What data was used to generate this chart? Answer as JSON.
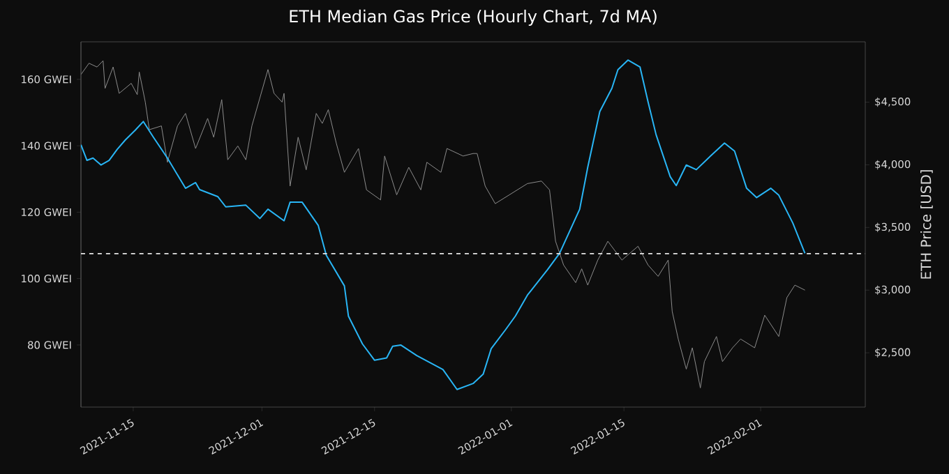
{
  "chart_data": {
    "type": "line",
    "title": "ETH Median Gas Price (Hourly Chart, 7d MA)",
    "y2label": "ETH Price [USD]",
    "xlim": [
      "2021-11-08T12:00",
      "2022-02-14T00:00"
    ],
    "xticks": [
      "2021-11-15",
      "2021-12-01",
      "2021-12-15",
      "2022-01-01",
      "2022-01-15",
      "2022-02-01"
    ],
    "ylim": [
      61.3,
      171.3
    ],
    "yticks": [
      {
        "value": 80,
        "label": "80 GWEI"
      },
      {
        "value": 100,
        "label": "100 GWEI"
      },
      {
        "value": 120,
        "label": "120 GWEI"
      },
      {
        "value": 140,
        "label": "140 GWEI"
      },
      {
        "value": 160,
        "label": "160 GWEI"
      }
    ],
    "y2lim": [
      2067,
      4981
    ],
    "y2ticks": [
      {
        "value": 2500,
        "label": "$2,500"
      },
      {
        "value": 3000,
        "label": "$3,000"
      },
      {
        "value": 3500,
        "label": "$3,500"
      },
      {
        "value": 4000,
        "label": "$4,000"
      },
      {
        "value": 4500,
        "label": "$4,500"
      }
    ],
    "series": [
      {
        "color": "#8c8c8c",
        "axis": "y2",
        "x": [
          "2021-11-08T12:00",
          "2021-11-09T12:00",
          "2021-11-10T12:00",
          "2021-11-11T06:00",
          "2021-11-11T12:00",
          "2021-11-12T12:00",
          "2021-11-13T06:00",
          "2021-11-14T18:00",
          "2021-11-15T12:00",
          "2021-11-15T18:00",
          "2021-11-16T12:00",
          "2021-11-17",
          "2021-11-18T12:00",
          "2021-11-19T06:00",
          "2021-11-20T12:00",
          "2021-11-21T12:00",
          "2021-11-22T18:00",
          "2021-11-24T06:00",
          "2021-11-25",
          "2021-11-26",
          "2021-11-26T18:00",
          "2021-11-28",
          "2021-11-29",
          "2021-11-29T18:00",
          "2021-12-01T18:00",
          "2021-12-02T12:00",
          "2021-12-03T12:00",
          "2021-12-03T18:00",
          "2021-12-04T12:00",
          "2021-12-05T12:00",
          "2021-12-06T12:00",
          "2021-12-07T18:00",
          "2021-12-08T12:00",
          "2021-12-09T06:00",
          "2021-12-10T06:00",
          "2021-12-11T06:00",
          "2021-12-13",
          "2021-12-14",
          "2021-12-15T18:00",
          "2021-12-16T06:00",
          "2021-12-17T18:00",
          "2021-12-19T06:00",
          "2021-12-20T18:00",
          "2021-12-21T12:00",
          "2021-12-23T06:00",
          "2021-12-24",
          "2021-12-26",
          "2021-12-27T06:00",
          "2021-12-27T18:00",
          "2021-12-28T18:00",
          "2021-12-30",
          "2021-12-31T18:00",
          "2022-01-03",
          "2022-01-04T18:00",
          "2022-01-05T18:00",
          "2022-01-06T12:00",
          "2022-01-07T12:00",
          "2022-01-09",
          "2022-01-09T18:00",
          "2022-01-10T12:00",
          "2022-01-11T18:00",
          "2022-01-13",
          "2022-01-14T18:00",
          "2022-01-16T18:00",
          "2022-01-18",
          "2022-01-19T06:00",
          "2022-01-20T12:00",
          "2022-01-21",
          "2022-01-21T18:00",
          "2022-01-22T18:00",
          "2022-01-23T12:00",
          "2022-01-24T12:00",
          "2022-01-25",
          "2022-01-26T12:00",
          "2022-01-27T06:00",
          "2022-01-28T12:00",
          "2022-01-29T12:00",
          "2022-01-31T06:00",
          "2022-02-01T12:00",
          "2022-02-03T06:00",
          "2022-02-04T06:00",
          "2022-02-05T06:00",
          "2022-02-06T12:00"
        ],
        "values": [
          4720,
          4810,
          4780,
          4830,
          4610,
          4780,
          4570,
          4650,
          4560,
          4740,
          4500,
          4280,
          4310,
          4020,
          4310,
          4410,
          4130,
          4370,
          4220,
          4520,
          4040,
          4150,
          4040,
          4310,
          4760,
          4570,
          4500,
          4570,
          3830,
          4220,
          3960,
          4410,
          4330,
          4440,
          4170,
          3940,
          4130,
          3800,
          3720,
          4070,
          3760,
          3980,
          3800,
          4020,
          3940,
          4130,
          4070,
          4090,
          4090,
          3830,
          3690,
          3760,
          3850,
          3870,
          3800,
          3390,
          3200,
          3060,
          3170,
          3040,
          3240,
          3390,
          3240,
          3350,
          3200,
          3110,
          3240,
          2830,
          2610,
          2370,
          2540,
          2220,
          2430,
          2630,
          2430,
          2540,
          2610,
          2540,
          2800,
          2630,
          2940,
          3040,
          3000
        ]
      },
      {
        "color": "#29b6f6",
        "axis": "y",
        "x": [
          "2021-11-08T12:00",
          "2021-11-09T06:00",
          "2021-11-10",
          "2021-11-11",
          "2021-11-12",
          "2021-11-13",
          "2021-11-14",
          "2021-11-15T06:00",
          "2021-11-16T06:00",
          "2021-11-17T12:00",
          "2021-11-19T06:00",
          "2021-11-21T12:00",
          "2021-11-22T18:00",
          "2021-11-23T06:00",
          "2021-11-25T12:00",
          "2021-11-26T12:00",
          "2021-11-29",
          "2021-11-30T18:00",
          "2021-12-01T18:00",
          "2021-12-03T18:00",
          "2021-12-04T12:00",
          "2021-12-06",
          "2021-12-08",
          "2021-12-09",
          "2021-12-11T06:00",
          "2021-12-11T18:00",
          "2021-12-13T12:00",
          "2021-12-15",
          "2021-12-16T12:00",
          "2021-12-17T06:00",
          "2021-12-18T06:00",
          "2021-12-20T06:00",
          "2021-12-23T12:00",
          "2021-12-25T06:00",
          "2021-12-27T06:00",
          "2021-12-28T12:00",
          "2021-12-29T12:00",
          "2021-12-31T06:00",
          "2022-01-01T12:00",
          "2022-01-03",
          "2022-01-05T12:00",
          "2022-01-07",
          "2022-01-09T12:00",
          "2022-01-10T12:00",
          "2022-01-12",
          "2022-01-13T12:00",
          "2022-01-14T06:00",
          "2022-01-15T12:00",
          "2022-01-17",
          "2022-01-18",
          "2022-01-19",
          "2022-01-20T18:00",
          "2022-01-21T12:00",
          "2022-01-22T18:00",
          "2022-01-24",
          "2022-01-25T12:00",
          "2022-01-27T12:00",
          "2022-01-28T18:00",
          "2022-01-30T06:00",
          "2022-01-31T12:00",
          "2022-02-02T06:00",
          "2022-02-03T06:00",
          "2022-02-05",
          "2022-02-06T12:00"
        ],
        "values": [
          140.3,
          135.6,
          136.3,
          134.2,
          135.6,
          138.9,
          141.7,
          144.7,
          147.3,
          142.6,
          136.3,
          127.2,
          128.9,
          126.8,
          124.7,
          121.6,
          122.1,
          118.1,
          120.9,
          117.4,
          123.0,
          123.0,
          116.0,
          107.0,
          97.8,
          88.7,
          80.3,
          75.4,
          76.1,
          79.6,
          80.0,
          76.8,
          72.6,
          66.6,
          68.4,
          71.2,
          78.9,
          84.5,
          88.7,
          95.0,
          102.7,
          107.6,
          120.9,
          133.5,
          150.3,
          157.3,
          162.9,
          165.8,
          163.7,
          153.2,
          143.3,
          130.7,
          128.0,
          134.2,
          132.8,
          136.3,
          140.8,
          138.4,
          127.2,
          124.4,
          127.2,
          125.1,
          116.7,
          107.6
        ]
      }
    ],
    "ref_lines": [
      {
        "axis": "y",
        "value": 107.5,
        "color": "#e6e6e6",
        "line_style": "dashed"
      }
    ]
  }
}
